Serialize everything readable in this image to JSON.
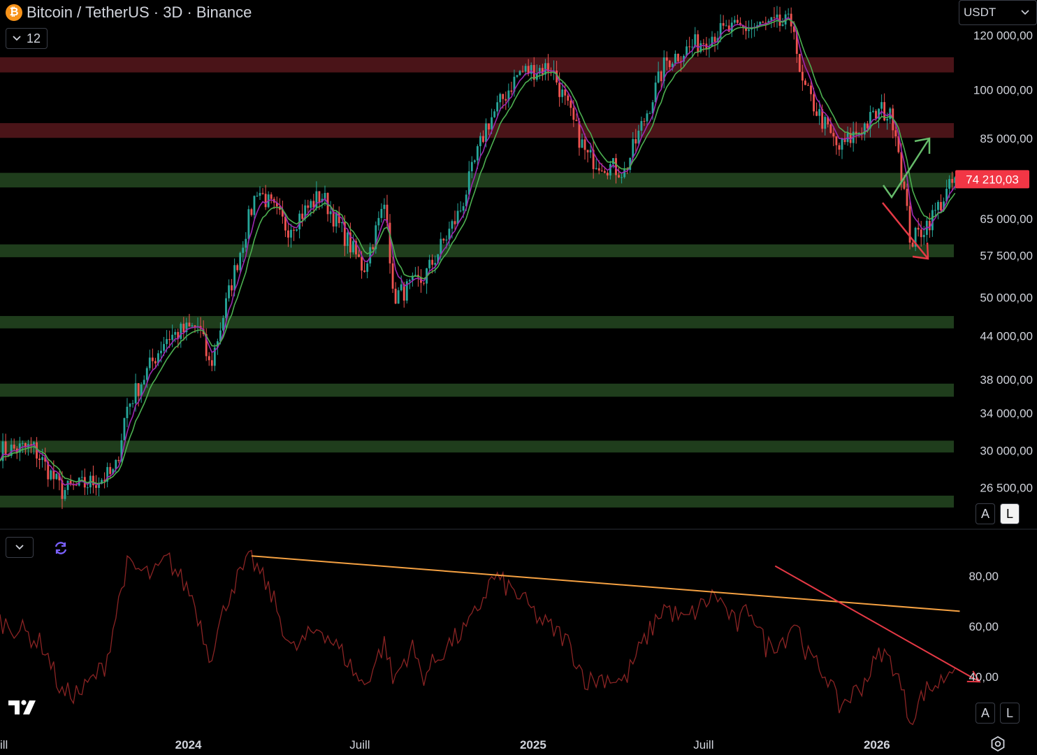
{
  "header": {
    "coin_icon": "bitcoin-icon",
    "title": "Bitcoin / TetherUS · 3D · Binance",
    "interval_value": "12"
  },
  "price_scale": {
    "currency": "USDT",
    "labels": [
      "120 000,00",
      "100 000,00",
      "85 000,00",
      "65 000,00",
      "57 500,00",
      "50 000,00",
      "44 000,00",
      "38 000,00",
      "34 000,00",
      "30 000,00",
      "26 500,00"
    ],
    "current_price_label": "74 210,03",
    "btn_auto": "A",
    "btn_log": "L"
  },
  "rsi_scale": {
    "labels": [
      "80,00",
      "60,00",
      "40,00"
    ],
    "btn_auto": "A",
    "btn_log": "L"
  },
  "time_axis": {
    "labels": [
      "ill",
      "2024",
      "Juill",
      "2025",
      "Juill",
      "2026"
    ]
  },
  "colors": {
    "background": "#000000",
    "support_zone": "#1f3d1c",
    "resistance_zone": "#4a1418",
    "candle_up": "#26a69a",
    "candle_down": "#ef5350",
    "ema_fast": "#9c27b0",
    "ema_slow": "#4caf50",
    "rsi_line": "#8b2424",
    "trendline_orange": "#f5a142",
    "trendline_red": "#e53945",
    "arrow_up": "#66bb6a",
    "arrow_down": "#e53945",
    "price_label_bg": "#f23645"
  },
  "chart_data": {
    "type": "line",
    "scale": "log",
    "x_range": [
      "2023-06-15",
      "2026-06-20"
    ],
    "ylim": [
      24000,
      135000
    ],
    "current_price": 74210.03,
    "price_path": [
      [
        "2023-06-15",
        30000
      ],
      [
        "2023-07-20",
        30300
      ],
      [
        "2023-08-20",
        26200
      ],
      [
        "2023-09-15",
        26800
      ],
      [
        "2023-10-15",
        27800
      ],
      [
        "2023-10-27",
        34500
      ],
      [
        "2023-12-08",
        43700
      ],
      [
        "2024-01-12",
        45500
      ],
      [
        "2024-01-24",
        39500
      ],
      [
        "2024-02-15",
        52000
      ],
      [
        "2024-03-14",
        72000
      ],
      [
        "2024-04-15",
        63000
      ],
      [
        "2024-05-21",
        70500
      ],
      [
        "2024-07-05",
        55000
      ],
      [
        "2024-07-29",
        69500
      ],
      [
        "2024-08-05",
        50000
      ],
      [
        "2024-09-06",
        53000
      ],
      [
        "2024-10-15",
        66500
      ],
      [
        "2024-11-12",
        88500
      ],
      [
        "2024-12-17",
        106000
      ],
      [
        "2025-01-20",
        108000
      ],
      [
        "2025-02-27",
        80000
      ],
      [
        "2025-04-08",
        76000
      ],
      [
        "2025-05-22",
        110000
      ],
      [
        "2025-07-14",
        121000
      ],
      [
        "2025-08-14",
        123000
      ],
      [
        "2025-10-06",
        125000
      ],
      [
        "2025-10-10",
        104000
      ],
      [
        "2025-11-21",
        82000
      ],
      [
        "2026-01-06",
        93500
      ],
      [
        "2026-01-20",
        90000
      ],
      [
        "2026-02-06",
        60000
      ],
      [
        "2026-03-01",
        65500
      ],
      [
        "2026-03-25",
        74210
      ]
    ],
    "support_zones": [
      [
        72200,
        75800
      ],
      [
        57200,
        59700
      ],
      [
        45100,
        47000
      ],
      [
        35900,
        37500
      ],
      [
        29800,
        31000
      ],
      [
        24800,
        25800
      ]
    ],
    "resistance_zones": [
      [
        106000,
        111500
      ],
      [
        85200,
        89500
      ]
    ],
    "rsi": {
      "ylim": [
        20,
        95
      ],
      "levels": [
        80,
        60,
        40
      ],
      "values": [
        [
          "2023-06-15",
          62
        ],
        [
          "2023-07-10",
          58
        ],
        [
          "2023-08-01",
          52
        ],
        [
          "2023-08-20",
          33
        ],
        [
          "2023-09-10",
          34
        ],
        [
          "2023-10-05",
          45
        ],
        [
          "2023-10-27",
          84
        ],
        [
          "2023-11-25",
          80
        ],
        [
          "2023-12-10",
          87
        ],
        [
          "2024-01-05",
          72
        ],
        [
          "2024-01-24",
          48
        ],
        [
          "2024-02-15",
          75
        ],
        [
          "2024-03-08",
          87
        ],
        [
          "2024-03-30",
          72
        ],
        [
          "2024-04-20",
          50
        ],
        [
          "2024-05-20",
          60
        ],
        [
          "2024-06-15",
          48
        ],
        [
          "2024-07-05",
          36
        ],
        [
          "2024-07-28",
          54
        ],
        [
          "2024-08-05",
          38
        ],
        [
          "2024-08-25",
          52
        ],
        [
          "2024-09-06",
          40
        ],
        [
          "2024-10-01",
          52
        ],
        [
          "2024-10-25",
          60
        ],
        [
          "2024-11-20",
          80
        ],
        [
          "2024-12-17",
          72
        ],
        [
          "2025-01-10",
          62
        ],
        [
          "2025-02-05",
          55
        ],
        [
          "2025-02-27",
          38
        ],
        [
          "2025-03-20",
          40
        ],
        [
          "2025-04-08",
          38
        ],
        [
          "2025-04-20",
          48
        ],
        [
          "2025-05-20",
          68
        ],
        [
          "2025-06-10",
          62
        ],
        [
          "2025-07-14",
          73
        ],
        [
          "2025-08-05",
          60
        ],
        [
          "2025-08-20",
          68
        ],
        [
          "2025-09-05",
          52
        ],
        [
          "2025-09-25",
          55
        ],
        [
          "2025-10-06",
          63
        ],
        [
          "2025-10-20",
          48
        ],
        [
          "2025-11-10",
          40
        ],
        [
          "2025-11-21",
          28
        ],
        [
          "2025-12-15",
          36
        ],
        [
          "2026-01-06",
          50
        ],
        [
          "2026-01-20",
          44
        ],
        [
          "2026-02-06",
          22
        ],
        [
          "2026-02-20",
          34
        ],
        [
          "2026-03-10",
          38
        ],
        [
          "2026-03-25",
          46
        ]
      ],
      "orange_trendline": [
        [
          "2024-03-08",
          88
        ],
        [
          "2026-03-30",
          66
        ]
      ],
      "red_trendline": [
        [
          "2025-09-15",
          84
        ],
        [
          "2026-04-20",
          38
        ]
      ]
    }
  }
}
